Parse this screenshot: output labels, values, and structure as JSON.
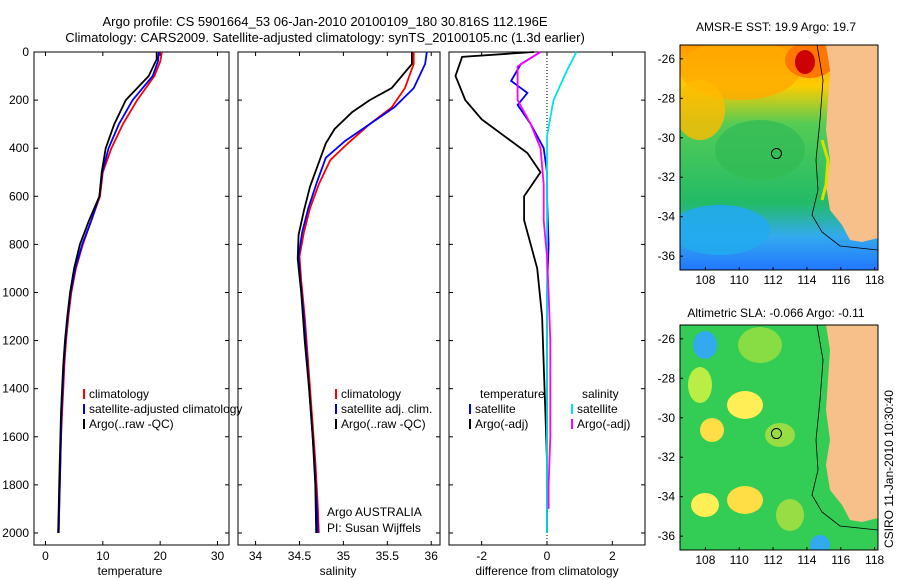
{
  "header": {
    "line1": "Argo profile: CS 5901664_53 06-Jan-2010 20100109_180 30.816S 112.196E",
    "line2": "Climatology: CARS2009. Satellite-adjusted climatology: synTS_20100105.nc (1.3d earlier)"
  },
  "credit": {
    "org": "Argo AUSTRALIA",
    "pi": "PI: Susan Wijffels",
    "stamp": "CSIRO 11-Jan-2010 10:30:40"
  },
  "colors": {
    "climatology": "#ff0000",
    "satellite": "#0000ff",
    "argo": "#000000",
    "cyan": "#00e5e5",
    "magenta": "#ff00ff"
  },
  "chart_data": [
    {
      "type": "line",
      "id": "temperature",
      "xlabel": "temperature",
      "ylabel": "",
      "xlim": [
        -2,
        32
      ],
      "ylim": [
        2050,
        0
      ],
      "xticks": [
        "0",
        "10",
        "20",
        "30"
      ],
      "yticks": [
        "0",
        "200",
        "400",
        "600",
        "800",
        "1000",
        "1200",
        "1400",
        "1600",
        "1800",
        "2000"
      ],
      "legend": [
        "climatology",
        "satellite-adjusted climatology",
        "Argo(..raw -QC)"
      ],
      "series": [
        {
          "name": "climatology",
          "color": "#ff0000",
          "points": [
            [
              20.3,
              0
            ],
            [
              20,
              40
            ],
            [
              19,
              100
            ],
            [
              16,
              200
            ],
            [
              13.5,
              300
            ],
            [
              11.5,
              400
            ],
            [
              10,
              500
            ],
            [
              9.5,
              600
            ],
            [
              8,
              700
            ],
            [
              6.5,
              800
            ],
            [
              5.3,
              900
            ],
            [
              4.5,
              1000
            ],
            [
              4,
              1100
            ],
            [
              3.6,
              1200
            ],
            [
              3.3,
              1300
            ],
            [
              3.1,
              1400
            ],
            [
              2.9,
              1500
            ],
            [
              2.7,
              1600
            ],
            [
              2.6,
              1700
            ],
            [
              2.5,
              1800
            ],
            [
              2.4,
              1900
            ],
            [
              2.3,
              2000
            ]
          ]
        },
        {
          "name": "satellite-adjusted climatology",
          "color": "#0000ff",
          "points": [
            [
              19.8,
              0
            ],
            [
              19.6,
              40
            ],
            [
              18.7,
              100
            ],
            [
              15.2,
              200
            ],
            [
              12.8,
              300
            ],
            [
              11,
              400
            ],
            [
              9.9,
              500
            ],
            [
              9.4,
              600
            ],
            [
              8,
              700
            ],
            [
              6.4,
              800
            ],
            [
              5.2,
              900
            ],
            [
              4.4,
              1000
            ],
            [
              3.9,
              1100
            ],
            [
              3.5,
              1200
            ],
            [
              3.2,
              1300
            ],
            [
              3,
              1400
            ],
            [
              2.8,
              1500
            ],
            [
              2.7,
              1600
            ],
            [
              2.6,
              1700
            ],
            [
              2.5,
              1800
            ],
            [
              2.4,
              1900
            ],
            [
              2.3,
              2000
            ]
          ]
        },
        {
          "name": "Argo(..raw -QC)",
          "color": "#000000",
          "points": [
            [
              19.4,
              0
            ],
            [
              19.4,
              30
            ],
            [
              18,
              100
            ],
            [
              14,
              200
            ],
            [
              12,
              300
            ],
            [
              10.5,
              400
            ],
            [
              9.8,
              500
            ],
            [
              9.4,
              600
            ],
            [
              7.6,
              700
            ],
            [
              6,
              800
            ],
            [
              5,
              900
            ],
            [
              4.3,
              1000
            ],
            [
              3.8,
              1100
            ],
            [
              3.4,
              1200
            ],
            [
              3.1,
              1300
            ],
            [
              2.9,
              1400
            ],
            [
              2.7,
              1500
            ],
            [
              2.6,
              1600
            ],
            [
              2.5,
              1700
            ],
            [
              2.4,
              1800
            ],
            [
              2.3,
              1900
            ],
            [
              2.2,
              2000
            ]
          ]
        }
      ]
    },
    {
      "type": "line",
      "id": "salinity",
      "xlabel": "salinity",
      "ylabel": "",
      "xlim": [
        33.8,
        36.1
      ],
      "ylim": [
        2050,
        0
      ],
      "xticks": [
        "34",
        "34.5",
        "35",
        "35.5",
        "36"
      ],
      "yticks": [],
      "legend": [
        "climatology",
        "satellite adj. clim.",
        "Argo(..raw -QC)"
      ],
      "series": [
        {
          "name": "climatology",
          "color": "#ff0000",
          "points": [
            [
              35.8,
              0
            ],
            [
              35.8,
              50
            ],
            [
              35.7,
              150
            ],
            [
              35.55,
              230
            ],
            [
              35.3,
              300
            ],
            [
              35.05,
              380
            ],
            [
              34.85,
              450
            ],
            [
              34.72,
              550
            ],
            [
              34.62,
              650
            ],
            [
              34.55,
              750
            ],
            [
              34.5,
              850
            ],
            [
              34.52,
              950
            ],
            [
              34.56,
              1100
            ],
            [
              34.6,
              1300
            ],
            [
              34.64,
              1500
            ],
            [
              34.68,
              1700
            ],
            [
              34.71,
              1900
            ],
            [
              34.72,
              2000
            ]
          ]
        },
        {
          "name": "satellite adj. clim.",
          "color": "#0000ff",
          "points": [
            [
              35.95,
              0
            ],
            [
              35.93,
              50
            ],
            [
              35.8,
              150
            ],
            [
              35.58,
              230
            ],
            [
              35.3,
              300
            ],
            [
              35.02,
              370
            ],
            [
              34.8,
              440
            ],
            [
              34.7,
              540
            ],
            [
              34.6,
              650
            ],
            [
              34.53,
              750
            ],
            [
              34.49,
              850
            ],
            [
              34.51,
              950
            ],
            [
              34.55,
              1100
            ],
            [
              34.59,
              1300
            ],
            [
              34.63,
              1500
            ],
            [
              34.67,
              1700
            ],
            [
              34.7,
              1900
            ],
            [
              34.71,
              2000
            ]
          ]
        },
        {
          "name": "Argo(..raw -QC)",
          "color": "#000000",
          "points": [
            [
              35.78,
              0
            ],
            [
              35.78,
              50
            ],
            [
              35.55,
              150
            ],
            [
              35.3,
              200
            ],
            [
              35.1,
              250
            ],
            [
              34.9,
              320
            ],
            [
              34.8,
              380
            ],
            [
              34.72,
              460
            ],
            [
              34.62,
              560
            ],
            [
              34.55,
              660
            ],
            [
              34.49,
              760
            ],
            [
              34.48,
              860
            ],
            [
              34.52,
              1000
            ],
            [
              34.56,
              1200
            ],
            [
              34.61,
              1400
            ],
            [
              34.65,
              1600
            ],
            [
              34.68,
              1800
            ],
            [
              34.69,
              2000
            ]
          ]
        }
      ]
    },
    {
      "type": "line",
      "id": "difference",
      "xlabel": "difference from climatology",
      "ylabel": "",
      "xlim": [
        -3,
        3
      ],
      "ylim": [
        2050,
        0
      ],
      "xticks": [
        "-2",
        "0",
        "2"
      ],
      "yticks": [],
      "legend": [
        "temperature",
        "satellite",
        "Argo(-adj)",
        "salinity",
        "satellite",
        "Argo(-adj)"
      ],
      "series": [
        {
          "name": "temperature satellite",
          "color": "#0000ff",
          "points": [
            [
              -0.2,
              0
            ],
            [
              -0.8,
              50
            ],
            [
              -1.1,
              120
            ],
            [
              -0.6,
              170
            ],
            [
              -0.9,
              220
            ],
            [
              -0.5,
              300
            ],
            [
              -0.1,
              400
            ],
            [
              0,
              500
            ],
            [
              0,
              600
            ],
            [
              0.05,
              800
            ],
            [
              0,
              1000
            ],
            [
              0,
              1200
            ],
            [
              0,
              1400
            ],
            [
              0,
              1600
            ],
            [
              0,
              1800
            ],
            [
              0,
              2000
            ]
          ]
        },
        {
          "name": "temperature Argo(-adj)",
          "color": "#000000",
          "points": [
            [
              -0.4,
              0
            ],
            [
              -2.6,
              20
            ],
            [
              -2.8,
              100
            ],
            [
              -2.5,
              200
            ],
            [
              -2,
              280
            ],
            [
              -1.3,
              350
            ],
            [
              -0.6,
              420
            ],
            [
              -0.2,
              500
            ],
            [
              -0.7,
              600
            ],
            [
              -0.7,
              700
            ],
            [
              -0.5,
              800
            ],
            [
              -0.3,
              900
            ],
            [
              -0.15,
              1100
            ],
            [
              -0.1,
              1300
            ],
            [
              -0.05,
              1500
            ],
            [
              0,
              1700
            ],
            [
              0,
              2000
            ]
          ]
        },
        {
          "name": "salinity satellite",
          "color": "#00e5e5",
          "points": [
            [
              0.9,
              0
            ],
            [
              0.6,
              80
            ],
            [
              0.2,
              200
            ],
            [
              0,
              350
            ],
            [
              0,
              600
            ],
            [
              0,
              1000
            ],
            [
              0,
              1400
            ],
            [
              0,
              1800
            ],
            [
              0,
              2000
            ]
          ]
        },
        {
          "name": "salinity Argo(-adj)",
          "color": "#ff00ff",
          "points": [
            [
              -0.2,
              0
            ],
            [
              -0.9,
              60
            ],
            [
              -0.9,
              200
            ],
            [
              -0.5,
              300
            ],
            [
              -0.2,
              400
            ],
            [
              -0.1,
              550
            ],
            [
              -0.1,
              700
            ],
            [
              0,
              850
            ],
            [
              0.05,
              1000
            ],
            [
              0.1,
              1200
            ],
            [
              0.1,
              1400
            ],
            [
              0.1,
              1600
            ],
            [
              0.05,
              1800
            ],
            [
              0.05,
              1900
            ]
          ]
        }
      ]
    },
    {
      "type": "heatmap",
      "id": "sst-map",
      "title": "AMSR-E SST: 19.9 Argo: 19.7",
      "xticks": [
        "108",
        "110",
        "112",
        "114",
        "116",
        "118"
      ],
      "yticks": [
        "-26",
        "-28",
        "-30",
        "-32",
        "-34",
        "-36"
      ],
      "xlim": [
        106.5,
        118.2
      ],
      "ylim": [
        -36.7,
        -25.3
      ],
      "marker": {
        "lon": 112.2,
        "lat": -30.8
      }
    },
    {
      "type": "heatmap",
      "id": "sla-map",
      "title": "Altimetric SLA: -0.066 Argo: -0.11",
      "xticks": [
        "108",
        "110",
        "112",
        "114",
        "116",
        "118"
      ],
      "yticks": [
        "-26",
        "-28",
        "-30",
        "-32",
        "-34",
        "-36"
      ],
      "xlim": [
        106.5,
        118.2
      ],
      "ylim": [
        -36.7,
        -25.3
      ],
      "marker": {
        "lon": 112.2,
        "lat": -30.8
      }
    }
  ]
}
